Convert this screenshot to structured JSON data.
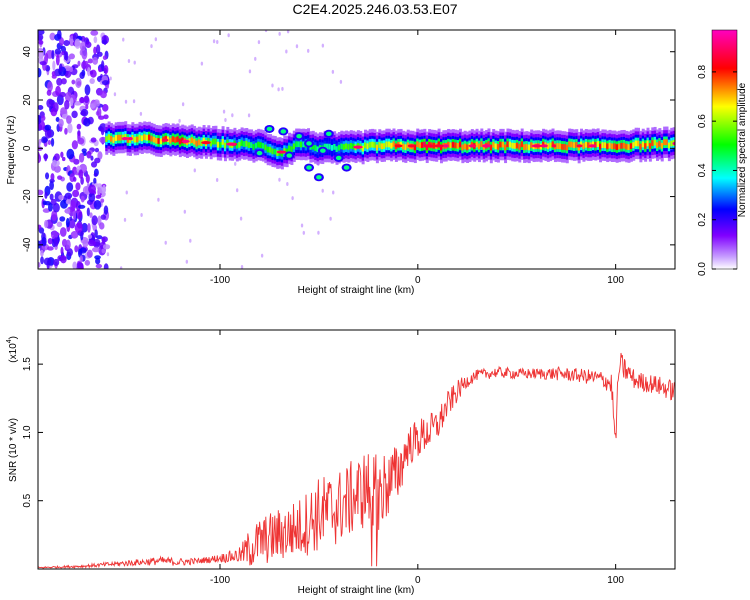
{
  "chart_data": [
    {
      "type": "heatmap",
      "title": "C2E4.2025.246.03.53.E07",
      "xlabel": "Height of straight line (km)",
      "ylabel": "Frequency (Hz)",
      "xlim": [
        -192,
        130
      ],
      "ylim": [
        -50,
        49
      ],
      "x_ticks": [
        -100,
        0,
        100
      ],
      "y_ticks": [
        40,
        20,
        0,
        -20,
        -40
      ],
      "colorbar": {
        "label": "Normalized spectral amplitude",
        "range": [
          0,
          0.97
        ],
        "ticks": [
          "0.0",
          "0.2",
          "0.4",
          "0.6",
          "0.8"
        ],
        "colors": [
          "#ffffff",
          "#8000ff",
          "#0000ff",
          "#00ffff",
          "#00ff00",
          "#ffff00",
          "#ff0000",
          "#ff00c0"
        ]
      },
      "ridge": {
        "description_values": "main spectral ridge near 0–5 Hz",
        "x": [
          -160,
          -140,
          -120,
          -100,
          -80,
          -70,
          -60,
          -50,
          -40,
          -20,
          0,
          20,
          40,
          60,
          80,
          100,
          130
        ],
        "freq": [
          4,
          4,
          3,
          2,
          1,
          -2,
          2,
          0,
          0,
          1,
          1,
          1,
          1,
          1,
          1,
          1,
          2
        ],
        "amplitude": [
          0.7,
          0.75,
          0.8,
          0.6,
          0.5,
          0.55,
          0.5,
          0.45,
          0.5,
          0.7,
          0.85,
          0.8,
          0.75,
          0.75,
          0.75,
          0.8,
          0.7
        ]
      },
      "noise_region": [
        -192,
        -157
      ]
    },
    {
      "type": "line",
      "title": "",
      "xlabel": "Height of straight line (km)",
      "ylabel": "SNR (10 * v/v)",
      "scale_label": "(x10",
      "scale_exp": "4",
      "scale_close": ")",
      "xlim": [
        -192,
        130
      ],
      "ylim": [
        0,
        1.75
      ],
      "x_ticks": [
        -100,
        0,
        100
      ],
      "y_ticks": [
        "0.5",
        "1.0",
        "1.5"
      ],
      "y_tick_values": [
        0.5,
        1.0,
        1.5
      ],
      "series": [
        {
          "name": "SNR",
          "color": "#ee3333",
          "x": [
            -192,
            -170,
            -150,
            -130,
            -120,
            -110,
            -100,
            -90,
            -85,
            -80,
            -70,
            -60,
            -50,
            -40,
            -30,
            -25,
            -20,
            -10,
            -5,
            0,
            10,
            15,
            20,
            25,
            30,
            40,
            50,
            60,
            70,
            80,
            90,
            95,
            98,
            99,
            100,
            101,
            102,
            110,
            120,
            130
          ],
          "y": [
            0.01,
            0.02,
            0.04,
            0.06,
            0.05,
            0.06,
            0.08,
            0.1,
            0.15,
            0.2,
            0.25,
            0.3,
            0.4,
            0.45,
            0.55,
            0.6,
            0.55,
            0.7,
            0.9,
            0.95,
            1.05,
            1.2,
            1.3,
            1.38,
            1.42,
            1.44,
            1.43,
            1.43,
            1.43,
            1.42,
            1.4,
            1.38,
            1.35,
            1.1,
            0.92,
            1.3,
            1.5,
            1.38,
            1.35,
            1.3
          ],
          "noise_amp": [
            0.005,
            0.01,
            0.02,
            0.03,
            0.03,
            0.02,
            0.03,
            0.06,
            0.15,
            0.18,
            0.2,
            0.22,
            0.28,
            0.28,
            0.28,
            0.3,
            0.3,
            0.22,
            0.15,
            0.15,
            0.12,
            0.1,
            0.08,
            0.05,
            0.04,
            0.04,
            0.04,
            0.04,
            0.05,
            0.05,
            0.06,
            0.07,
            0.1,
            0.1,
            0.05,
            0.1,
            0.1,
            0.07,
            0.07,
            0.08
          ]
        }
      ]
    }
  ]
}
